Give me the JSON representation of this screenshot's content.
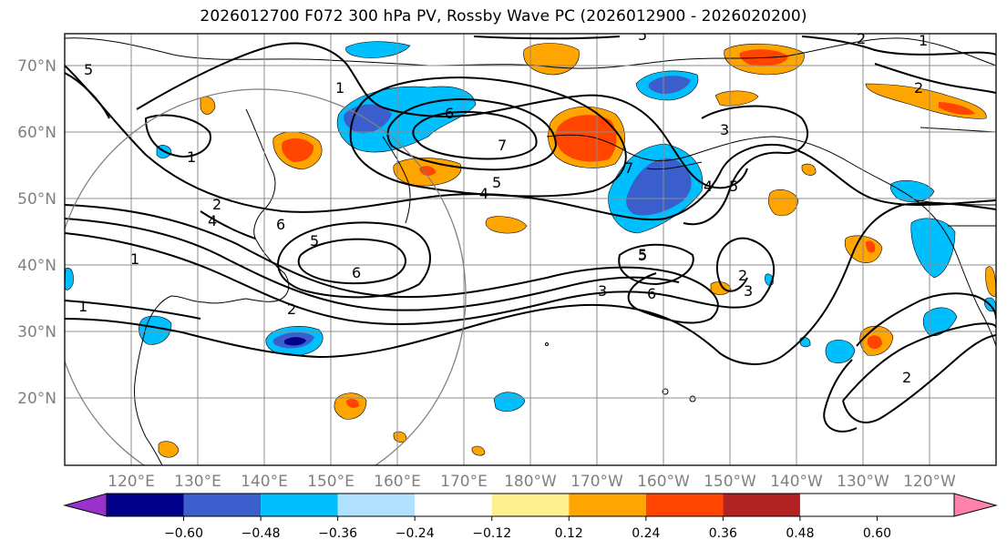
{
  "title": "2026012700 F072 300 hPa PV, Rossby Wave PC (2026012900 - 2026020200)",
  "map": {
    "lat_ticks": [
      "70°N",
      "60°N",
      "50°N",
      "40°N",
      "30°N",
      "20°N"
    ],
    "lon_ticks": [
      "120°E",
      "130°E",
      "140°E",
      "150°E",
      "160°E",
      "170°E",
      "180°W",
      "170°W",
      "160°W",
      "150°W",
      "140°W",
      "130°W",
      "120°W"
    ],
    "pv_contour_labels": [
      "5",
      "1",
      "6",
      "7",
      "5",
      "4",
      "7",
      "5",
      "4",
      "5",
      "2",
      "4",
      "6",
      "5",
      "6",
      "1",
      "1",
      "2",
      "5",
      "6",
      "3",
      "2",
      "3",
      "1",
      "2",
      "1",
      "2",
      "3",
      "5",
      "2"
    ]
  },
  "colorbar": {
    "tick_labels": [
      "−0.60",
      "−0.48",
      "−0.36",
      "−0.24",
      "−0.12",
      "0.12",
      "0.24",
      "0.36",
      "0.48",
      "0.60"
    ],
    "colors": [
      "#9932cc",
      "#00008b",
      "#3a5fcd",
      "#00bfff",
      "#b0e2ff",
      "#ffffff",
      "#fff08f",
      "#ffa500",
      "#ff4500",
      "#b22222",
      "#ff82ab"
    ]
  }
}
